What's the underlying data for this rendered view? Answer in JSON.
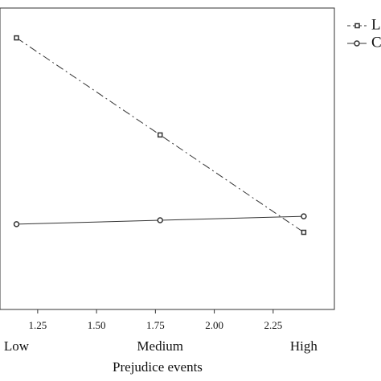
{
  "chart_data": {
    "type": "line",
    "x_label": "Prejudice events",
    "x": [
      1.16,
      1.77,
      2.38
    ],
    "categories": [
      "Low",
      "Medium",
      "High"
    ],
    "xlim": [
      1.09,
      2.51
    ],
    "xticks": [
      1.25,
      1.5,
      1.75,
      2.0,
      2.25
    ],
    "ylim": [
      0,
      100
    ],
    "series": [
      {
        "name": "L",
        "color": "#333333",
        "marker": "square",
        "dash": "dashdot",
        "values": [
          90.1,
          57.9,
          25.6
        ]
      },
      {
        "name": "C",
        "color": "#333333",
        "marker": "circle",
        "dash": "solid",
        "values": [
          28.3,
          29.6,
          30.9
        ]
      }
    ]
  }
}
